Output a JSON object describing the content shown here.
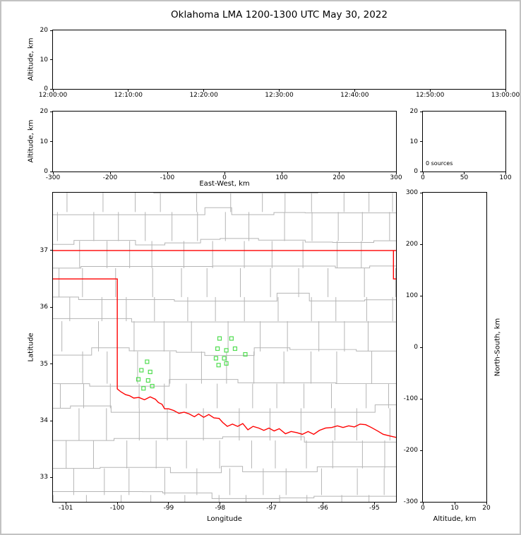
{
  "title": "Oklahoma LMA 1200-1300 UTC May 30, 2022",
  "chart_data": {
    "type": "scatter",
    "title": "Oklahoma LMA 1200-1300 UTC May 30, 2022",
    "grid": false,
    "source_count": 0,
    "colors": {
      "state_border": "#ff0000",
      "county_lines": "#b5b5b5",
      "stations": "#50dd50",
      "spines": "#000000"
    },
    "panels": {
      "time_height": {
        "xlim": [
          0,
          3600
        ],
        "xticks": [
          0,
          600,
          1200,
          1800,
          2400,
          3000,
          3600
        ],
        "xtick_labels": [
          "12:00:00",
          "12:10:00",
          "12:20:00",
          "12:30:00",
          "12:40:00",
          "12:50:00",
          "13:00:00"
        ],
        "ylim": [
          0,
          20
        ],
        "yticks": [
          0,
          10,
          20
        ],
        "ylabel": "Altitude, km",
        "points": []
      },
      "ew_height": {
        "xlim": [
          -300,
          300
        ],
        "xticks": [
          -300,
          -200,
          -100,
          0,
          100,
          200,
          300
        ],
        "xlabel": "East-West, km",
        "ylim": [
          0,
          20
        ],
        "yticks": [
          0,
          10,
          20
        ],
        "ylabel": "Altitude, km",
        "points": []
      },
      "alt_histogram": {
        "xlim": [
          0,
          100
        ],
        "xticks": [
          0,
          50,
          100
        ],
        "ylim": [
          0,
          20
        ],
        "yticks": [
          0,
          10,
          20
        ],
        "annotation": "0 sources",
        "points": []
      },
      "map": {
        "xlabel": "Longitude",
        "ylabel": "Latitude",
        "xlim": [
          -101.25,
          -94.58
        ],
        "xticks": [
          -101,
          -100,
          -99,
          -98,
          -97,
          -96,
          -95
        ],
        "ylim": [
          32.57,
          38.02
        ],
        "yticks": [
          33,
          34,
          35,
          36,
          37
        ],
        "state_border": [
          [
            [
              -101.25,
              37.0
            ],
            [
              -94.58,
              37.0
            ]
          ],
          [
            [
              -94.63,
              37.0
            ],
            [
              -94.63,
              36.5
            ],
            [
              -94.57,
              36.5
            ]
          ],
          [
            [
              -101.25,
              36.5
            ],
            [
              -100.0,
              36.5
            ],
            [
              -100.0,
              34.56
            ],
            [
              -99.93,
              34.51
            ],
            [
              -99.84,
              34.46
            ],
            [
              -99.76,
              34.44
            ],
            [
              -99.68,
              34.4
            ],
            [
              -99.58,
              34.41
            ],
            [
              -99.47,
              34.37
            ],
            [
              -99.36,
              34.42
            ],
            [
              -99.26,
              34.38
            ],
            [
              -99.2,
              34.32
            ],
            [
              -99.13,
              34.29
            ],
            [
              -99.08,
              34.21
            ],
            [
              -99.0,
              34.21
            ],
            [
              -98.9,
              34.18
            ],
            [
              -98.8,
              34.13
            ],
            [
              -98.7,
              34.15
            ],
            [
              -98.6,
              34.12
            ],
            [
              -98.5,
              34.07
            ],
            [
              -98.42,
              34.12
            ],
            [
              -98.32,
              34.06
            ],
            [
              -98.22,
              34.11
            ],
            [
              -98.12,
              34.05
            ],
            [
              -98.02,
              34.04
            ],
            [
              -97.95,
              33.97
            ],
            [
              -97.86,
              33.9
            ],
            [
              -97.76,
              33.94
            ],
            [
              -97.66,
              33.9
            ],
            [
              -97.56,
              33.95
            ],
            [
              -97.46,
              33.84
            ],
            [
              -97.36,
              33.9
            ],
            [
              -97.25,
              33.87
            ],
            [
              -97.15,
              33.83
            ],
            [
              -97.05,
              33.87
            ],
            [
              -96.95,
              33.82
            ],
            [
              -96.85,
              33.86
            ],
            [
              -96.73,
              33.77
            ],
            [
              -96.62,
              33.81
            ],
            [
              -96.51,
              33.79
            ],
            [
              -96.4,
              33.76
            ],
            [
              -96.29,
              33.81
            ],
            [
              -96.18,
              33.76
            ],
            [
              -96.07,
              33.83
            ],
            [
              -95.95,
              33.87
            ],
            [
              -95.83,
              33.88
            ],
            [
              -95.72,
              33.91
            ],
            [
              -95.61,
              33.88
            ],
            [
              -95.5,
              33.91
            ],
            [
              -95.39,
              33.89
            ],
            [
              -95.28,
              33.94
            ],
            [
              -95.17,
              33.93
            ],
            [
              -95.06,
              33.88
            ],
            [
              -94.94,
              33.82
            ],
            [
              -94.83,
              33.76
            ],
            [
              -94.7,
              33.73
            ],
            [
              -94.55,
              33.7
            ]
          ]
        ],
        "stations": [
          [
            -98.01,
            35.45
          ],
          [
            -97.78,
            35.45
          ],
          [
            -98.05,
            35.27
          ],
          [
            -97.88,
            35.24
          ],
          [
            -97.71,
            35.27
          ],
          [
            -98.08,
            35.1
          ],
          [
            -97.92,
            35.1
          ],
          [
            -97.51,
            35.17
          ],
          [
            -98.03,
            34.98
          ],
          [
            -97.88,
            35.01
          ],
          [
            -99.42,
            35.04
          ],
          [
            -99.53,
            34.89
          ],
          [
            -99.36,
            34.86
          ],
          [
            -99.59,
            34.73
          ],
          [
            -99.4,
            34.71
          ],
          [
            -99.49,
            34.57
          ],
          [
            -99.32,
            34.61
          ]
        ]
      },
      "ns_height": {
        "xlim": [
          0,
          20
        ],
        "xticks": [
          0,
          10,
          20
        ],
        "xlabel": "Altitude, km",
        "ylim": [
          -300,
          300
        ],
        "yticks": [
          -300,
          -200,
          -100,
          0,
          100,
          200,
          300
        ],
        "ylabel_right": "North-South, km",
        "points": []
      }
    }
  }
}
